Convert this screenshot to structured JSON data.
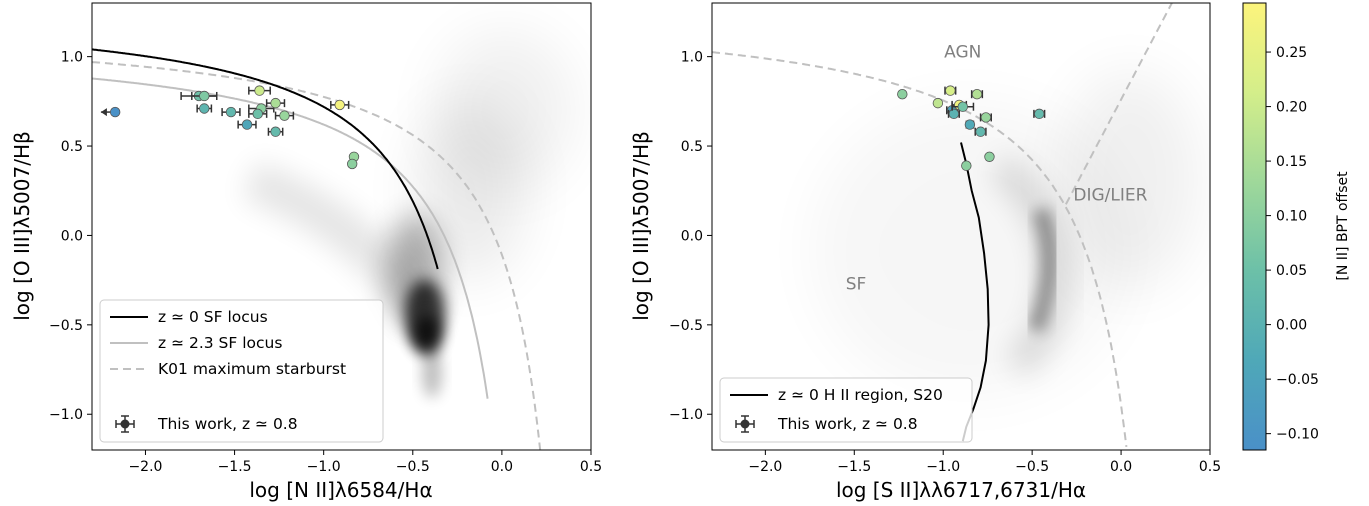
{
  "colors": {
    "sf_locus_z0": "#000000",
    "sf_locus_z23": "#c0c0c0",
    "k01": "#c0c0c0",
    "errorbar": "#333333",
    "colormap": [
      "#4a90c8",
      "#4fa8b8",
      "#6cc0a8",
      "#9fd89a",
      "#d4ee8a",
      "#fcf47c"
    ]
  },
  "colorbar": {
    "label": "[N II] BPT offset",
    "min": -0.115,
    "max": 0.295,
    "ticks": [
      -0.1,
      -0.05,
      0.0,
      0.05,
      0.1,
      0.15,
      0.2,
      0.25
    ],
    "tick_labels": [
      "−0.10",
      "−0.05",
      "0.00",
      "0.05",
      "0.10",
      "0.15",
      "0.20",
      "0.25"
    ]
  },
  "chart_data": [
    {
      "type": "scatter",
      "panel": "left",
      "xlabel": "log [N II]λ6584/Hα",
      "ylabel": "log [O III]λ5007/Hβ",
      "xlim": [
        -2.3,
        0.5
      ],
      "ylim": [
        -1.2,
        1.3
      ],
      "xticks": [
        -2.0,
        -1.5,
        -1.0,
        -0.5,
        0.0,
        0.5
      ],
      "xtick_labels": [
        "−2.0",
        "−1.5",
        "−1.0",
        "−0.5",
        "0.0",
        "0.5"
      ],
      "yticks": [
        -1.0,
        -0.5,
        0.0,
        0.5,
        1.0
      ],
      "ytick_labels": [
        "−1.0",
        "−0.5",
        "0.0",
        "0.5",
        "1.0"
      ],
      "background": "grey density of local SDSS galaxies",
      "legend": {
        "placement": "lower-left",
        "entries": [
          {
            "label": "z ≃ 0 SF locus",
            "style": "solid-black"
          },
          {
            "label": "z ≃ 2.3 SF locus",
            "style": "solid-grey"
          },
          {
            "label": "K01 maximum starburst",
            "style": "dashed-grey"
          },
          {
            "label": "This work, z ≃ 0.8",
            "style": "errorbar-point"
          }
        ]
      },
      "points": [
        {
          "x": -2.17,
          "y": 0.69,
          "c": -0.11,
          "xerr": 0.03,
          "upper_limit": true
        },
        {
          "x": -1.7,
          "y": 0.78,
          "c": 0.05,
          "xerr": 0.1
        },
        {
          "x": -1.67,
          "y": 0.78,
          "c": 0.08,
          "xerr": 0.07
        },
        {
          "x": -1.67,
          "y": 0.71,
          "c": 0.01,
          "xerr": 0.04
        },
        {
          "x": -1.52,
          "y": 0.69,
          "c": 0.02,
          "xerr": 0.05
        },
        {
          "x": -1.43,
          "y": 0.62,
          "c": -0.04,
          "xerr": 0.05
        },
        {
          "x": -1.36,
          "y": 0.81,
          "c": 0.2,
          "xerr": 0.06
        },
        {
          "x": -1.35,
          "y": 0.71,
          "c": 0.1,
          "xerr": 0.07
        },
        {
          "x": -1.37,
          "y": 0.68,
          "c": 0.05,
          "xerr": 0.05
        },
        {
          "x": -1.27,
          "y": 0.74,
          "c": 0.15,
          "xerr": 0.05
        },
        {
          "x": -1.22,
          "y": 0.67,
          "c": 0.12,
          "xerr": 0.05
        },
        {
          "x": -1.27,
          "y": 0.58,
          "c": 0.03,
          "xerr": 0.04
        },
        {
          "x": -0.91,
          "y": 0.73,
          "c": 0.28,
          "xerr": 0.05
        },
        {
          "x": -0.83,
          "y": 0.44,
          "c": 0.12,
          "xerr": 0.01
        },
        {
          "x": -0.84,
          "y": 0.4,
          "c": 0.1,
          "xerr": 0.01
        }
      ]
    },
    {
      "type": "scatter",
      "panel": "right",
      "xlabel": "log [S II]λλ6717,6731/Hα",
      "ylabel": "log [O III]λ5007/Hβ",
      "xlim": [
        -2.3,
        0.5
      ],
      "ylim": [
        -1.2,
        1.3
      ],
      "xticks": [
        -2.0,
        -1.5,
        -1.0,
        -0.5,
        0.0,
        0.5
      ],
      "xtick_labels": [
        "−2.0",
        "−1.5",
        "−1.0",
        "−0.5",
        "0.0",
        "0.5"
      ],
      "yticks": [
        -1.0,
        -0.5,
        0.0,
        0.5,
        1.0
      ],
      "ytick_labels": [
        "−1.0",
        "−0.5",
        "0.0",
        "0.5",
        "1.0"
      ],
      "background": "grey density of local SDSS galaxies",
      "region_labels": [
        {
          "text": "AGN",
          "x": -0.89,
          "y": 1.03
        },
        {
          "text": "DIG/LIER",
          "x": -0.06,
          "y": 0.23
        },
        {
          "text": "SF",
          "x": -1.49,
          "y": -0.27
        }
      ],
      "legend": {
        "placement": "lower-left",
        "entries": [
          {
            "label": "z ≃ 0 H II region, S20",
            "style": "solid-black"
          },
          {
            "label": "This work, z ≃ 0.8",
            "style": "errorbar-point"
          }
        ]
      },
      "points": [
        {
          "x": -1.23,
          "y": 0.79,
          "c": 0.1,
          "xerr": 0.01
        },
        {
          "x": -1.03,
          "y": 0.74,
          "c": 0.18,
          "xerr": 0.01
        },
        {
          "x": -0.96,
          "y": 0.81,
          "c": 0.22,
          "xerr": 0.03
        },
        {
          "x": -0.95,
          "y": 0.7,
          "c": -0.05,
          "xerr": 0.03
        },
        {
          "x": -0.94,
          "y": 0.68,
          "c": 0.0,
          "xerr": 0.03
        },
        {
          "x": -0.91,
          "y": 0.73,
          "c": 0.27,
          "xerr": 0.04
        },
        {
          "x": -0.89,
          "y": 0.72,
          "c": 0.06,
          "xerr": 0.06
        },
        {
          "x": -0.81,
          "y": 0.79,
          "c": 0.16,
          "xerr": 0.03
        },
        {
          "x": -0.85,
          "y": 0.62,
          "c": -0.03,
          "xerr": 0.02
        },
        {
          "x": -0.79,
          "y": 0.58,
          "c": 0.02,
          "xerr": 0.03
        },
        {
          "x": -0.76,
          "y": 0.66,
          "c": 0.12,
          "xerr": 0.03
        },
        {
          "x": -0.74,
          "y": 0.44,
          "c": 0.1,
          "xerr": 0.01
        },
        {
          "x": -0.87,
          "y": 0.39,
          "c": 0.1,
          "xerr": 0.01
        },
        {
          "x": -0.46,
          "y": 0.68,
          "c": 0.03,
          "xerr": 0.03
        }
      ]
    }
  ]
}
